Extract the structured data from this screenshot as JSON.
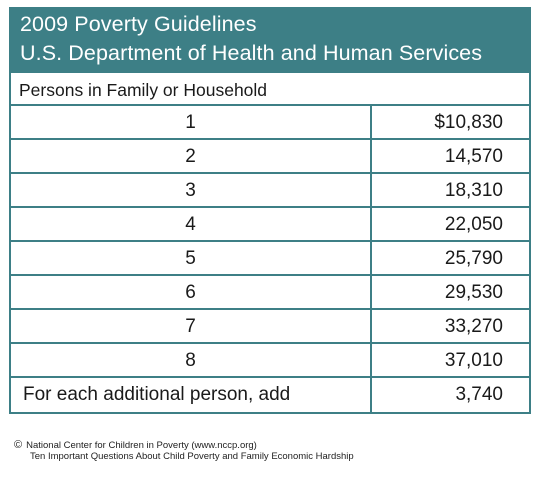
{
  "header": {
    "title_line1": "2009 Poverty Guidelines",
    "title_line2": "U.S. Department of Health and Human Services"
  },
  "table": {
    "column_header": "Persons in Family or Household",
    "rows": [
      {
        "persons": "1",
        "amount": "$10,830"
      },
      {
        "persons": "2",
        "amount": "14,570"
      },
      {
        "persons": "3",
        "amount": "18,310"
      },
      {
        "persons": "4",
        "amount": "22,050"
      },
      {
        "persons": "5",
        "amount": "25,790"
      },
      {
        "persons": "6",
        "amount": "29,530"
      },
      {
        "persons": "7",
        "amount": "33,270"
      },
      {
        "persons": "8",
        "amount": "37,010"
      },
      {
        "persons": "For each additional person, add",
        "amount": "3,740"
      }
    ]
  },
  "footer": {
    "copyright_symbol": "©",
    "line1": "National Center for Children in Poverty (www.nccp.org)",
    "line2": "Ten Important Questions About Child Poverty and Family Economic Hardship"
  },
  "colors": {
    "header_bg": "#3d7f86",
    "border": "#3d7f86",
    "header_text": "#ffffff"
  }
}
